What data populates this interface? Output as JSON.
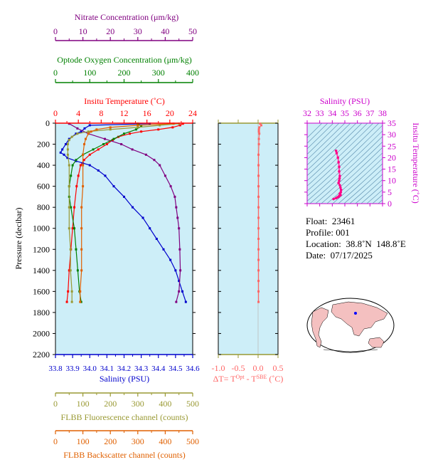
{
  "colors": {
    "nitrate": "#800080",
    "oxygen": "#008000",
    "temperature": "#ff0000",
    "salinity": "#0000cc",
    "fluorescence": "#999933",
    "backscatter": "#e06000",
    "delta": "#ff6666",
    "inset_axis": "#cc00cc",
    "plot_bg": "#cdeef8"
  },
  "info": {
    "float_label": "Float:",
    "float_value": "23461",
    "profile_label": "Profile:",
    "profile_value": "001",
    "location_label": "Location:",
    "location_value": "38.8˚N  148.8˚E",
    "date_label": "Date:",
    "date_value": "07/17/2025"
  },
  "chart_data": [
    {
      "type": "line",
      "name": "main-profile",
      "ylabel": "Pressure (decibar)",
      "ylim": [
        2200,
        0
      ],
      "yticks": [
        "0",
        "200",
        "400",
        "600",
        "800",
        "1000",
        "1200",
        "1400",
        "1600",
        "1800",
        "2000",
        "2200"
      ],
      "axes": {
        "nitrate": {
          "label": "Nitrate Concentration (μm/kg)",
          "range": [
            0,
            50
          ],
          "ticks": [
            "0",
            "10",
            "20",
            "30",
            "40",
            "50"
          ]
        },
        "oxygen": {
          "label": "Optode Oxygen Concentration (μm/kg)",
          "range": [
            0,
            400
          ],
          "ticks": [
            "0",
            "100",
            "200",
            "300",
            "400"
          ]
        },
        "temperature": {
          "label": "Insitu Temperature (˚C)",
          "range": [
            0,
            24
          ],
          "ticks": [
            "0",
            "4",
            "8",
            "12",
            "16",
            "20",
            "24"
          ]
        },
        "salinity": {
          "label": "Salinity (PSU)",
          "range": [
            33.8,
            34.6
          ],
          "ticks": [
            "33.8",
            "33.9",
            "34.0",
            "34.1",
            "34.2",
            "34.3",
            "34.4",
            "34.5",
            "34.6"
          ]
        },
        "fluorescence": {
          "label": "FLBB Fluorescence channel (counts)",
          "range": [
            0,
            500
          ],
          "ticks": [
            "0",
            "100",
            "200",
            "300",
            "400",
            "500"
          ]
        },
        "backscatter": {
          "label": "FLBB Backscatter channel (counts)",
          "range": [
            0,
            500
          ],
          "ticks": [
            "0",
            "100",
            "200",
            "300",
            "400",
            "500"
          ]
        }
      },
      "series": [
        {
          "key": "temperature",
          "p": [
            5,
            20,
            40,
            60,
            80,
            100,
            130,
            160,
            200,
            250,
            300,
            350,
            400,
            500,
            600,
            800,
            1000,
            1200,
            1400,
            1600,
            1700
          ],
          "v": [
            22.3,
            21.8,
            20.5,
            18,
            15,
            13,
            11,
            10,
            9,
            7.5,
            6,
            5,
            4.4,
            4,
            3.7,
            3.3,
            3.0,
            2.7,
            2.4,
            2.2,
            2.0
          ]
        },
        {
          "key": "salinity",
          "p": [
            5,
            20,
            50,
            80,
            100,
            150,
            200,
            250,
            280,
            300,
            330,
            360,
            380,
            400,
            450,
            500,
            600,
            700,
            800,
            900,
            1000,
            1100,
            1200,
            1300,
            1400,
            1500,
            1600,
            1700
          ],
          "v": [
            34.35,
            34.0,
            33.97,
            33.95,
            33.92,
            33.88,
            33.86,
            33.84,
            33.83,
            33.85,
            33.87,
            33.92,
            33.96,
            34.0,
            34.05,
            34.09,
            34.14,
            34.2,
            34.25,
            34.31,
            34.35,
            34.39,
            34.43,
            34.47,
            34.5,
            34.52,
            34.54,
            34.56
          ]
        },
        {
          "key": "nitrate",
          "p": [
            5,
            50,
            100,
            150,
            200,
            250,
            300,
            350,
            400,
            500,
            600,
            700,
            800,
            900,
            1000,
            1200,
            1400,
            1600,
            1700
          ],
          "v": [
            5,
            8,
            12,
            18,
            24,
            28,
            33,
            36,
            38,
            40,
            42,
            43.5,
            44,
            44.5,
            45,
            45.3,
            45.5,
            45,
            44
          ]
        },
        {
          "key": "oxygen",
          "p": [
            5,
            30,
            60,
            100,
            150,
            200,
            250,
            300,
            350,
            400,
            500,
            600,
            700,
            800,
            1000,
            1200,
            1400,
            1600,
            1700
          ],
          "v": [
            240,
            250,
            235,
            200,
            170,
            140,
            110,
            80,
            60,
            50,
            45,
            40,
            40,
            45,
            55,
            60,
            65,
            70,
            75
          ]
        },
        {
          "key": "fluorescence",
          "p": [
            5,
            20,
            40,
            60,
            80,
            100,
            130,
            160,
            200,
            250,
            300,
            400,
            600,
            800,
            1000,
            1200,
            1400,
            1600,
            1700
          ],
          "v": [
            450,
            380,
            300,
            200,
            120,
            80,
            60,
            50,
            45,
            45,
            45,
            50,
            50,
            50,
            50,
            55,
            55,
            60,
            60
          ]
        },
        {
          "key": "backscatter",
          "p": [
            5,
            20,
            40,
            60,
            80,
            100,
            150,
            200,
            300,
            400,
            600,
            800,
            1000,
            1200,
            1400,
            1600,
            1700
          ],
          "v": [
            430,
            300,
            200,
            150,
            130,
            120,
            110,
            105,
            100,
            100,
            100,
            95,
            95,
            95,
            95,
            90,
            90
          ]
        }
      ]
    },
    {
      "type": "line",
      "name": "delta-t",
      "xlabel_prefix": "ΔT= T",
      "xlabel_sup1": "Opt",
      "xlabel_mid": " - T",
      "xlabel_sup2": "SBE",
      "xlabel_suffix": " (˚C)",
      "xlim": [
        -1.0,
        0.5
      ],
      "xticks": [
        "-1.0",
        "-0.5",
        "0.0",
        "0.5"
      ],
      "ylim": [
        2200,
        0
      ],
      "series": [
        {
          "p": [
            5,
            20,
            40,
            60,
            80,
            100,
            150,
            200,
            300,
            400,
            500,
            600,
            700,
            800,
            900,
            1000,
            1100,
            1200,
            1300,
            1400,
            1500,
            1600,
            1700
          ],
          "v": [
            0.05,
            0.08,
            0.03,
            0.02,
            0.02,
            0.03,
            0.02,
            0.02,
            0.01,
            0.01,
            0.01,
            0.01,
            0.01,
            0.01,
            0.01,
            0.01,
            0.01,
            0.01,
            0.01,
            0.01,
            0.01,
            0.01,
            0.01
          ]
        }
      ]
    },
    {
      "type": "scatter",
      "name": "ts-diagram",
      "xlabel": "Salinity (PSU)",
      "ylabel": "Insitu Temperature (˚C)",
      "xlim": [
        32,
        38
      ],
      "ylim": [
        0,
        35
      ],
      "xticks": [
        "32",
        "33",
        "34",
        "35",
        "36",
        "37",
        "38"
      ],
      "yticks": [
        "0",
        "5",
        "10",
        "15",
        "20",
        "25",
        "30",
        "35"
      ],
      "series": [
        {
          "s": [
            34.3,
            34.35,
            34.45,
            34.5,
            34.55,
            34.55,
            34.6,
            34.58,
            34.55,
            34.5,
            34.6,
            34.65,
            34.7,
            34.68,
            34.6,
            34.62,
            34.66,
            34.55,
            34.5,
            34.4,
            34.3,
            34.1
          ],
          "t": [
            23,
            22,
            20,
            18,
            16,
            14,
            12,
            11,
            10,
            9,
            8,
            7,
            6,
            5,
            4.4,
            4,
            3.7,
            3.3,
            3.0,
            2.7,
            2.4,
            2.0
          ]
        }
      ]
    }
  ]
}
